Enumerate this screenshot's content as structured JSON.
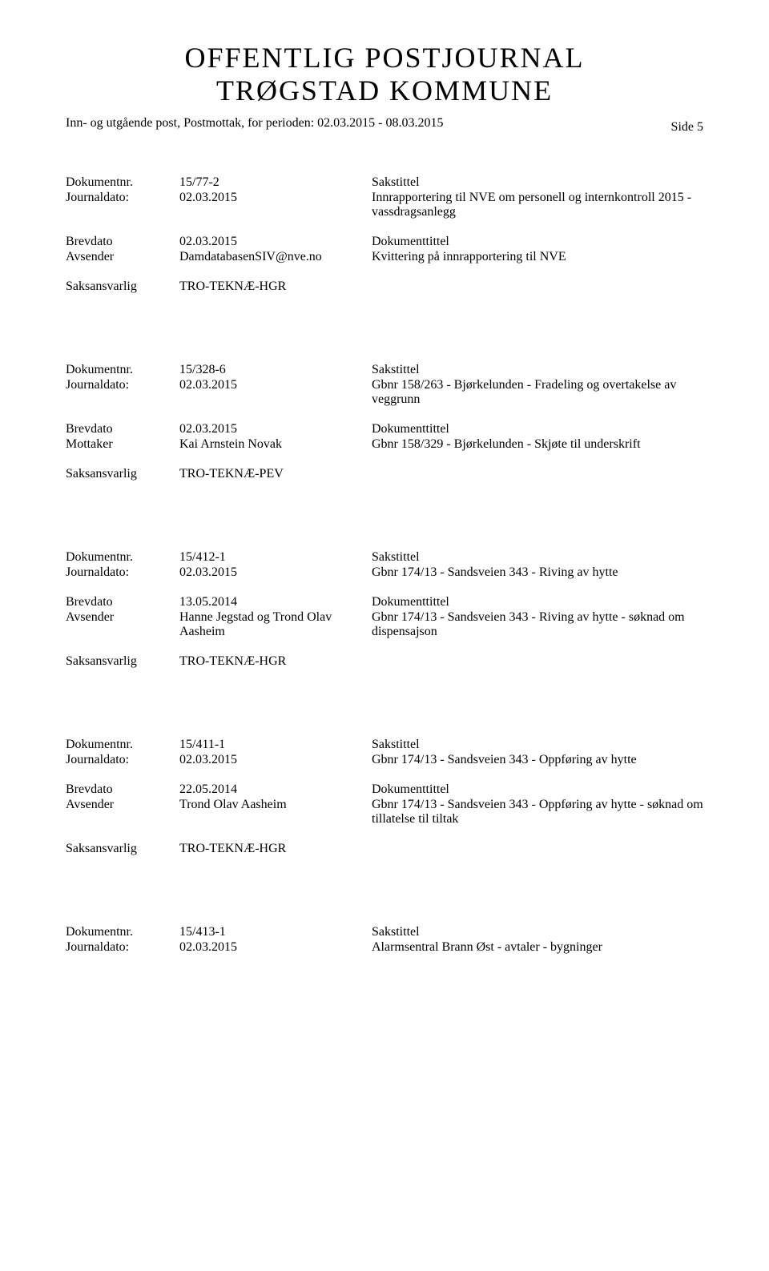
{
  "header": {
    "title_line1": "OFFENTLIG POSTJOURNAL",
    "title_line2": "TRØGSTAD KOMMUNE",
    "subtitle": "Inn- og utgående post, Postmottak, for perioden: 02.03.2015 - 08.03.2015",
    "side_label": "Side 5"
  },
  "labels": {
    "dokumentnr": "Dokumentnr.",
    "journaldato": "Journaldato:",
    "brevdato": "Brevdato",
    "avsender": "Avsender",
    "mottaker": "Mottaker",
    "saksansvarlig": "Saksansvarlig",
    "sakstittel": "Sakstittel",
    "dokumenttittel": "Dokumenttittel"
  },
  "entries": [
    {
      "dokumentnr": "15/77-2",
      "journaldato": "02.03.2015",
      "sakstittel": "Innrapportering til NVE om personell og internkontroll 2015 - vassdragsanlegg",
      "brevdato": "02.03.2015",
      "party_label": "Avsender",
      "party": "DamdatabasenSIV@nve.no",
      "dokumenttittel": "Kvittering på innrapportering til NVE",
      "saksansvarlig": "TRO-TEKNÆ-HGR"
    },
    {
      "dokumentnr": "15/328-6",
      "journaldato": "02.03.2015",
      "sakstittel": "Gbnr 158/263 - Bjørkelunden - Fradeling og overtakelse av veggrunn",
      "brevdato": "02.03.2015",
      "party_label": "Mottaker",
      "party": "Kai Arnstein Novak",
      "dokumenttittel": "Gbnr 158/329 - Bjørkelunden - Skjøte til underskrift",
      "saksansvarlig": "TRO-TEKNÆ-PEV"
    },
    {
      "dokumentnr": "15/412-1",
      "journaldato": "02.03.2015",
      "sakstittel": "Gbnr 174/13 - Sandsveien 343 - Riving av hytte",
      "brevdato": "13.05.2014",
      "party_label": "Avsender",
      "party": "Hanne Jegstad og Trond Olav Aasheim",
      "dokumenttittel": "Gbnr 174/13 - Sandsveien 343 - Riving av hytte  - søknad om dispensajson",
      "saksansvarlig": "TRO-TEKNÆ-HGR"
    },
    {
      "dokumentnr": "15/411-1",
      "journaldato": "02.03.2015",
      "sakstittel": "Gbnr 174/13 - Sandsveien 343  - Oppføring av hytte",
      "brevdato": "22.05.2014",
      "party_label": "Avsender",
      "party": "Trond Olav Aasheim",
      "dokumenttittel": "Gbnr 174/13 - Sandsveien 343  - Oppføring av hytte  - søknad om tillatelse til tiltak",
      "saksansvarlig": "TRO-TEKNÆ-HGR"
    },
    {
      "dokumentnr": "15/413-1",
      "journaldato": "02.03.2015",
      "sakstittel": "Alarmsentral Brann Øst - avtaler - bygninger"
    }
  ]
}
